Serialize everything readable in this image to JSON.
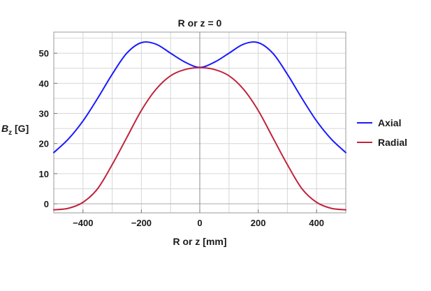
{
  "chart_data": {
    "type": "line",
    "title": "R or z = 0",
    "xlabel": "R or z [mm]",
    "ylabel": "B",
    "ylabel_subscript": "z",
    "ylabel_unit": " [G]",
    "xlim": [
      -500,
      500
    ],
    "ylim": [
      -3,
      57
    ],
    "xticks": [
      -400,
      -200,
      0,
      200,
      400
    ],
    "xtick_labels": [
      "−400",
      "−200",
      "0",
      "200",
      "400"
    ],
    "yticks": [
      0,
      10,
      20,
      30,
      40,
      50
    ],
    "ytick_labels": [
      "0",
      "10",
      "20",
      "30",
      "40",
      "50"
    ],
    "grid": true,
    "legend_position": "right",
    "series": [
      {
        "name": "Axial",
        "color": "#1a1aff",
        "x": [
          -500,
          -450,
          -400,
          -350,
          -300,
          -250,
          -200,
          -150,
          -100,
          -50,
          0,
          50,
          100,
          150,
          200,
          250,
          300,
          350,
          400,
          450,
          500
        ],
        "y": [
          17,
          21.5,
          27.5,
          35,
          43,
          50,
          53.5,
          53,
          50,
          47,
          45.3,
          47,
          50,
          53,
          53.5,
          50,
          43,
          35,
          27.5,
          21.5,
          17
        ]
      },
      {
        "name": "Radial",
        "color": "#c0233c",
        "x": [
          -500,
          -450,
          -400,
          -350,
          -300,
          -250,
          -200,
          -150,
          -100,
          -50,
          0,
          50,
          100,
          150,
          200,
          250,
          300,
          350,
          400,
          450,
          500
        ],
        "y": [
          -2,
          -1.5,
          0.5,
          5,
          13,
          22,
          31,
          38,
          42.5,
          44.6,
          45.2,
          44.6,
          42.5,
          38,
          31,
          22,
          13,
          5,
          0.5,
          -1.5,
          -2
        ]
      }
    ]
  }
}
